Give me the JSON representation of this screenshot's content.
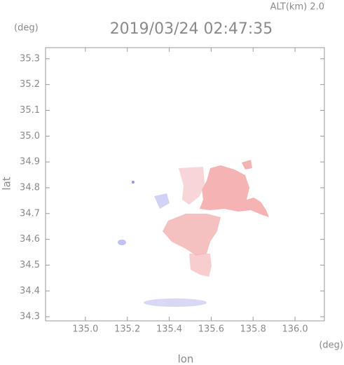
{
  "chart_data": {
    "type": "radar-map",
    "title": "2019/03/24 02:47:35",
    "altitude_label": "ALT(km) 2.0",
    "x_label": "lon",
    "y_label": "lat",
    "x_unit": "(deg)",
    "y_unit": "(deg)",
    "xlim": [
      134.81,
      136.14
    ],
    "ylim": [
      34.284,
      35.343
    ],
    "xticks": [
      {
        "value": 135,
        "label": "135.0"
      },
      135.2,
      135.4,
      135.6,
      135.8,
      {
        "value": 136,
        "label": "136.0"
      }
    ],
    "yticks": [
      34.3,
      34.4,
      34.5,
      34.6,
      34.7,
      34.8,
      34.9,
      {
        "value": 35,
        "label": "35.0"
      },
      35.1,
      35.2,
      35.3
    ]
  }
}
